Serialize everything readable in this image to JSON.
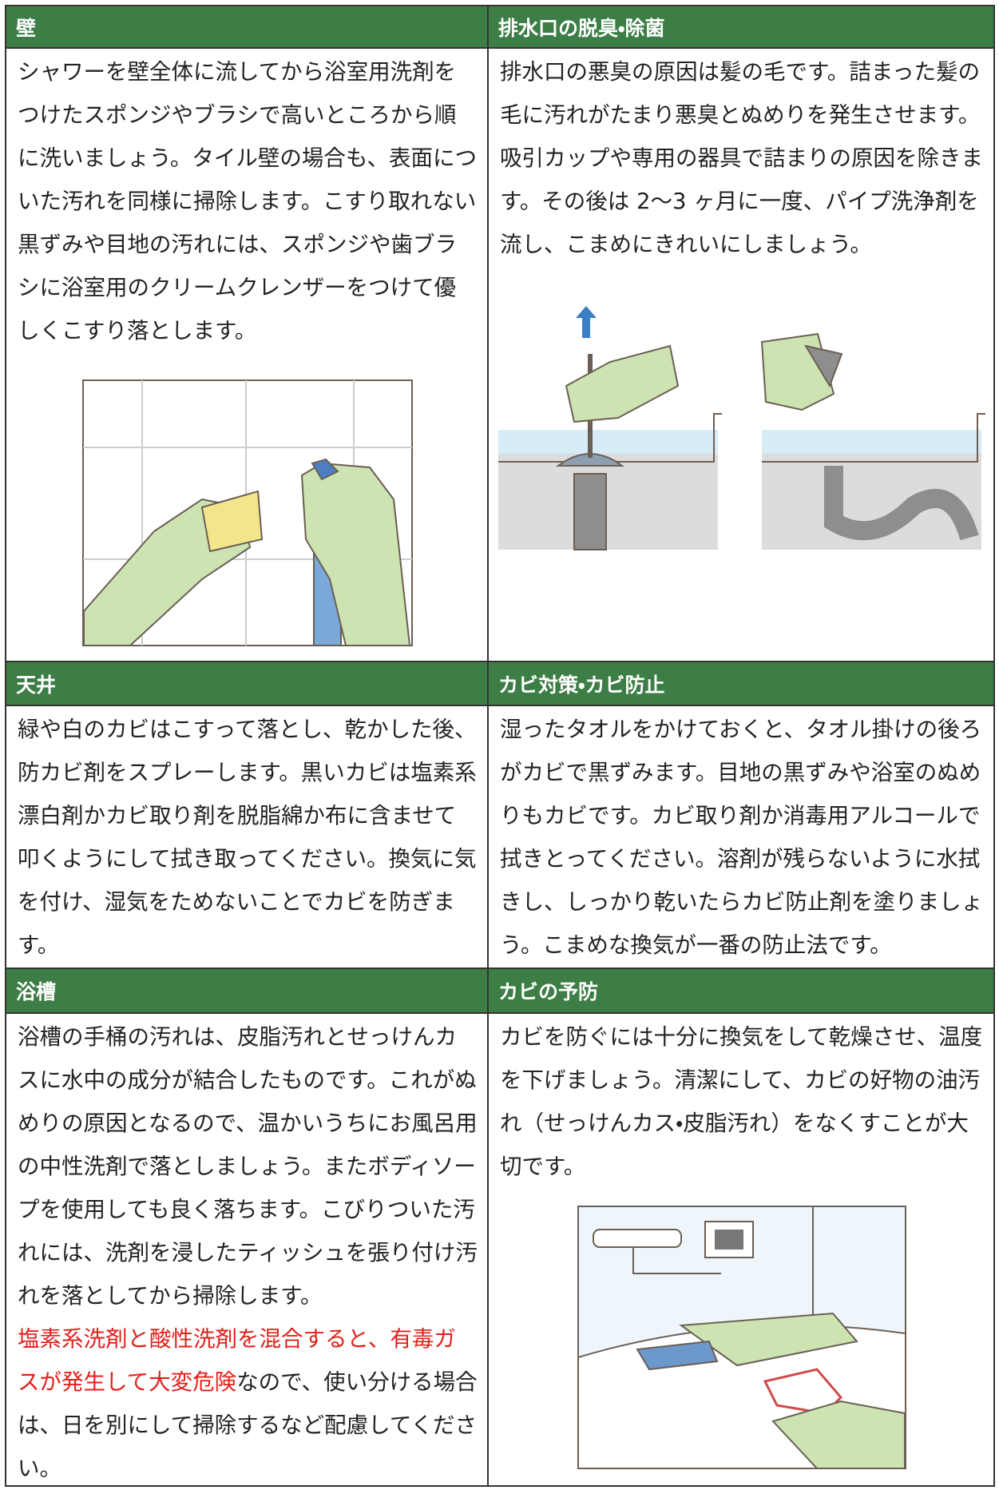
{
  "sections": [
    {
      "title": "壁",
      "text": "シャワーを壁全体に流してから浴室用洗剤をつけたスポンジやブラシで高いところから順に洗いましょう。タイル壁の場合も、表面についた汚れを同様に掃除します。こすり取れない黒ずみや目地の汚れには、スポンジや歯ブラシに浴室用のクリームクレンザーをつけて優しくこすり落とします。"
    },
    {
      "title": "排水口の脱臭・除菌",
      "text": "排水口の悪臭の原因は髪の毛です。詰まった髪の毛に汚れがたまり悪臭とぬめりを発生させます。吸引カップや専用の器具で詰まりの原因を除きます。その後は 2〜3 ヶ月に一度、パイプ洗浄剤を流し、こまめにきれいにしましょう。"
    },
    {
      "title": "天井",
      "text": "緑や白のカビはこすって落とし、乾かした後、防カビ剤をスプレーします。黒いカビは塩素系漂白剤かカビ取り剤を脱脂綿か布に含ませて叩くようにして拭き取ってください。換気に気を付け、湿気をためないことでカビを防ぎます。"
    },
    {
      "title": "カビ対策・カビ防止",
      "text": "湿ったタオルをかけておくと、タオル掛けの後ろがカビで黒ずみます。目地の黒ずみや浴室のぬめりもカビです。カビ取り剤か消毒用アルコールで拭きとってください。溶剤が残らないように水拭きし、しっかり乾いたらカビ防止剤を塗りましょう。こまめな換気が一番の防止法です。"
    },
    {
      "title": "浴槽",
      "text": "浴槽の手桶の汚れは、皮脂汚れとせっけんカスに水中の成分が結合したものです。これがぬめりの原因となるので、温かいうちにお風呂用の中性洗剤で落としましょう。またボディソープを使用しても良く落ちます。こびりついた汚れには、洗剤を浸したティッシュを張り付け汚れを落としてから掃除します。",
      "warning": "塩素系洗剤と酸性洗剤を混合すると、有毒ガスが発生して大変危険",
      "warning_tail": "なので、使い分ける場合は、日を別にして掃除するなど配慮してください。"
    },
    {
      "title": "カビの予防",
      "text": "カビを防ぐには十分に換気をして乾燥させ、温度を下げましょう。清潔にして、カビの好物の油汚れ（せっけんカス・皮脂汚れ）をなくすことが大切です。"
    }
  ]
}
